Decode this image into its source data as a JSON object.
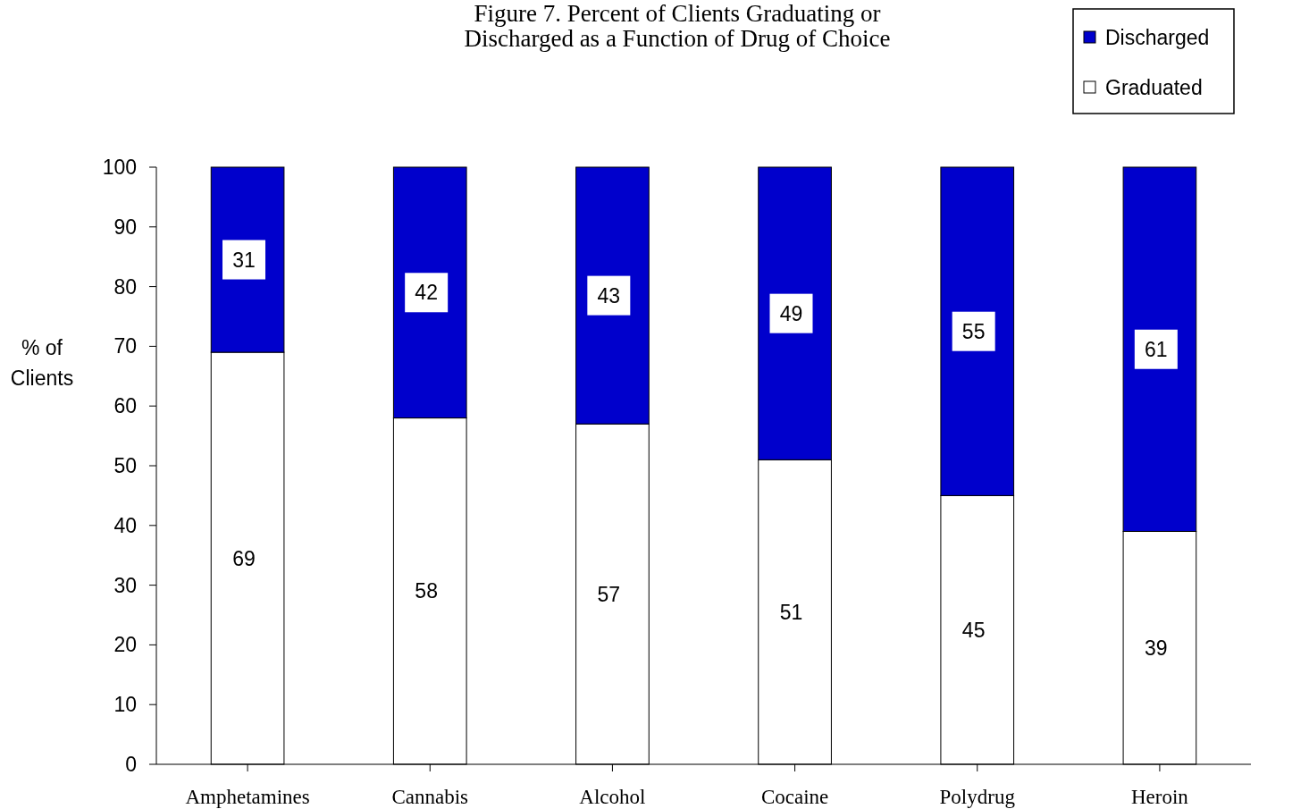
{
  "chart_data": {
    "type": "bar",
    "stacked": true,
    "title": "Figure 7. Percent of Clients Graduating or\nDischarged  as a Function of Drug of Choice",
    "ylabel": "% of\nClients",
    "categories": [
      "Amphetamines",
      "Cannabis",
      "Alcohol",
      "Cocaine",
      "Polydrug",
      "Heroin"
    ],
    "series": [
      {
        "name": "Graduated",
        "color": "#ffffff",
        "values": [
          69,
          58,
          57,
          51,
          45,
          39
        ]
      },
      {
        "name": "Discharged",
        "color": "#0000cc",
        "values": [
          31,
          42,
          43,
          49,
          55,
          61
        ]
      }
    ],
    "ylim": [
      0,
      100
    ],
    "yticks": [
      0,
      10,
      20,
      30,
      40,
      50,
      60,
      70,
      80,
      90,
      100
    ],
    "legend": "top right",
    "data_labels": true
  }
}
